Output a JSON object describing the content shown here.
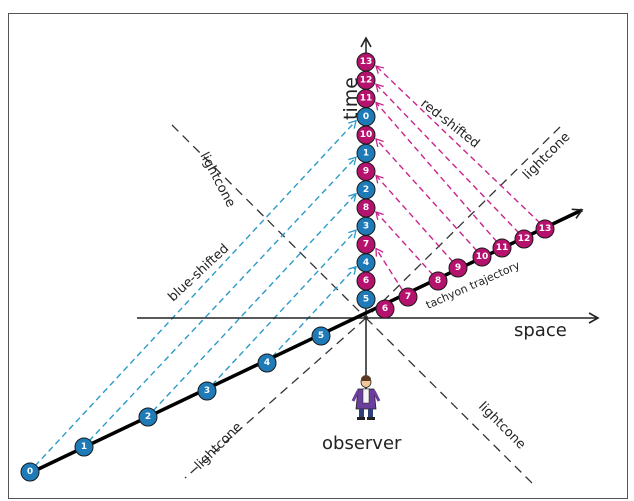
{
  "labels": {
    "time": "time",
    "space": "space",
    "observer": "observer",
    "lightcone": "lightcone",
    "blue_shifted": "blue-shifted",
    "red_shifted": "red-shifted",
    "tachyon_trajectory": "tachyon trajectory"
  },
  "colors": {
    "blue_marker": "#1f7ab8",
    "magenta_marker": "#b5126d",
    "blue_signal": "#2a9ac8",
    "magenta_signal": "#c9248a",
    "axis": "#222222",
    "lightcone_line": "#333333"
  },
  "tachyon_events": [
    "0",
    "1",
    "2",
    "3",
    "4",
    "5",
    "6",
    "7",
    "8",
    "9",
    "10",
    "11",
    "12",
    "13"
  ],
  "observer_received_order": [
    "13",
    "12",
    "11",
    "0",
    "10",
    "1",
    "9",
    "2",
    "8",
    "3",
    "7",
    "4",
    "6",
    "5"
  ],
  "icons": [
    "observer-figure-icon"
  ]
}
